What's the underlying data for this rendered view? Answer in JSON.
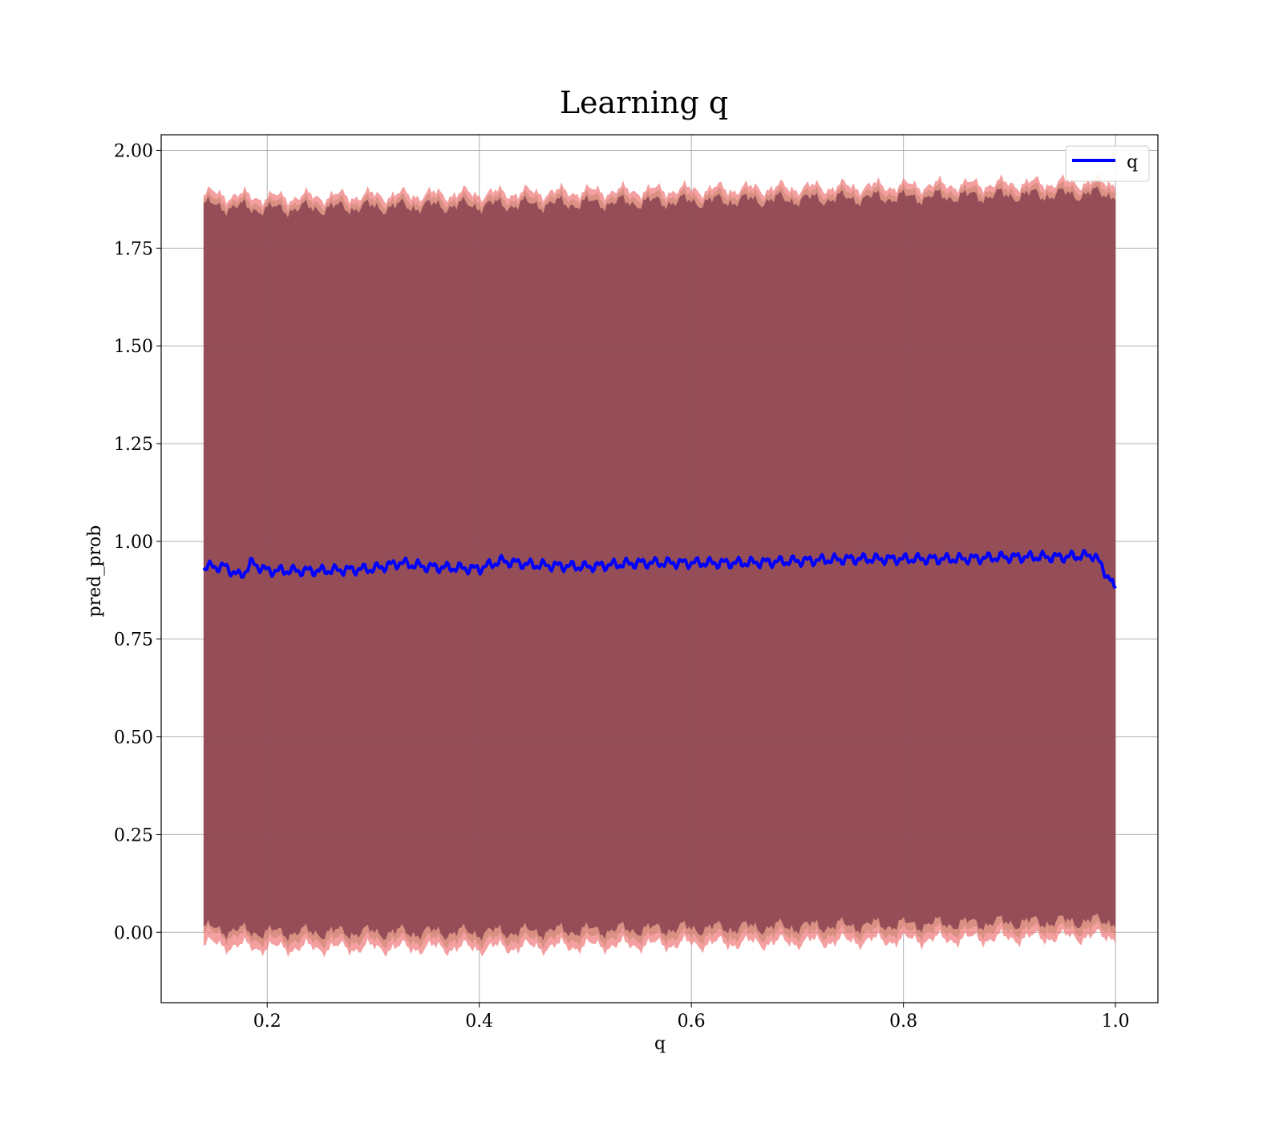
{
  "chart_data": {
    "type": "line",
    "title": "Learning q",
    "xlabel": "q",
    "ylabel": "pred_prob",
    "xlim": [
      0.1,
      1.04
    ],
    "ylim": [
      -0.18,
      2.04
    ],
    "xticks": [
      0.2,
      0.4,
      0.6,
      0.8,
      1.0
    ],
    "xtick_labels": [
      "0.2",
      "0.4",
      "0.6",
      "0.8",
      "1.0"
    ],
    "yticks": [
      0.0,
      0.25,
      0.5,
      0.75,
      1.0,
      1.25,
      1.5,
      1.75,
      2.0
    ],
    "ytick_labels": [
      "0.00",
      "0.25",
      "0.50",
      "0.75",
      "1.00",
      "1.25",
      "1.50",
      "1.75",
      "2.00"
    ],
    "grid": true,
    "legend": {
      "placement": "top-right",
      "entries": [
        "q"
      ]
    },
    "colors": {
      "line": "#0000ff",
      "band_outer": "#f08080",
      "band_middle": "#c8866e",
      "band_inner": "#7a3448",
      "grid": "#b0b0b0"
    },
    "series": [
      {
        "name": "q",
        "x": [
          0.14,
          0.16,
          0.175,
          0.185,
          0.2,
          0.25,
          0.3,
          0.325,
          0.35,
          0.4,
          0.42,
          0.45,
          0.5,
          0.55,
          0.6,
          0.65,
          0.7,
          0.75,
          0.8,
          0.85,
          0.9,
          0.95,
          0.98,
          1.0
        ],
        "y": [
          0.935,
          0.935,
          0.91,
          0.945,
          0.925,
          0.925,
          0.93,
          0.945,
          0.935,
          0.93,
          0.95,
          0.94,
          0.935,
          0.945,
          0.945,
          0.945,
          0.95,
          0.955,
          0.955,
          0.955,
          0.96,
          0.96,
          0.965,
          0.88
        ]
      }
    ],
    "bands": [
      {
        "name": "outer",
        "x": [
          0.14,
          0.2,
          0.4,
          0.6,
          0.8,
          1.0
        ],
        "lower": [
          -0.03,
          -0.04,
          -0.04,
          -0.03,
          -0.02,
          -0.01
        ],
        "upper": [
          1.89,
          1.88,
          1.89,
          1.9,
          1.91,
          1.92
        ]
      },
      {
        "name": "middle",
        "x": [
          0.14,
          0.2,
          0.4,
          0.6,
          0.8,
          1.0
        ],
        "lower": [
          0.0,
          -0.02,
          -0.02,
          -0.01,
          0.0,
          0.01
        ],
        "upper": [
          1.875,
          1.865,
          1.875,
          1.885,
          1.895,
          1.905
        ]
      },
      {
        "name": "inner",
        "x": [
          0.14,
          0.2,
          0.4,
          0.6,
          0.8,
          1.0
        ],
        "lower": [
          0.01,
          0.0,
          0.0,
          0.01,
          0.02,
          0.03
        ],
        "upper": [
          1.86,
          1.85,
          1.86,
          1.87,
          1.88,
          1.89
        ]
      }
    ]
  }
}
